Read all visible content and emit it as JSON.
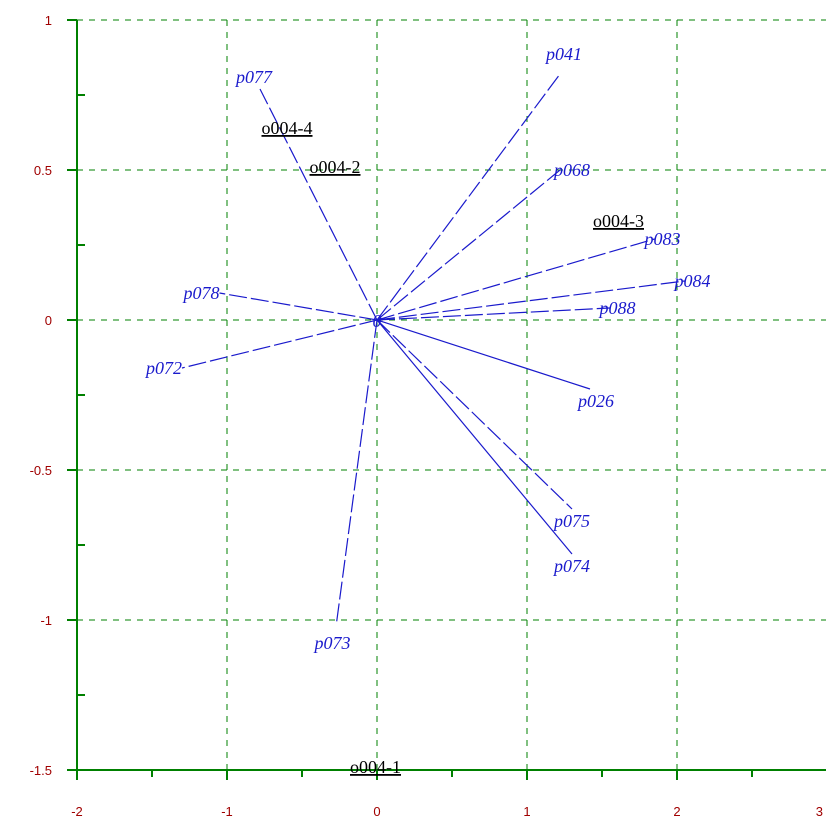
{
  "colors": {
    "axis": "#008000",
    "grid": "#008000",
    "tick_label": "#a00000",
    "vector": "#1a1acc",
    "observation": "#000000"
  },
  "chart_data": {
    "type": "scatter",
    "title": "",
    "xlabel": "",
    "ylabel": "",
    "xlim": [
      -2,
      3
    ],
    "ylim": [
      -1.5,
      1
    ],
    "grid": true,
    "x_ticks": [
      -2,
      -1,
      0,
      1,
      2,
      3
    ],
    "x_tick_labels": [
      "-2",
      "-1",
      "0",
      "1",
      "2",
      "3"
    ],
    "y_ticks": [
      -1.5,
      -1,
      -0.5,
      0,
      0.5,
      1
    ],
    "y_tick_labels": [
      "-1.5",
      "-1",
      "-0.5",
      "0",
      "0.5",
      "1"
    ],
    "origin_marker": "0",
    "vectors": [
      {
        "label": "p041",
        "x": 1.22,
        "y": 0.82,
        "style": "dashed"
      },
      {
        "label": "p077",
        "x": -0.78,
        "y": 0.77,
        "style": "dashed"
      },
      {
        "label": "p068",
        "x": 1.22,
        "y": 0.5,
        "style": "dashed"
      },
      {
        "label": "p083",
        "x": 1.85,
        "y": 0.27,
        "style": "dashed"
      },
      {
        "label": "p084",
        "x": 2.05,
        "y": 0.13,
        "style": "dashed"
      },
      {
        "label": "p088",
        "x": 1.55,
        "y": 0.04,
        "style": "dashed"
      },
      {
        "label": "p078",
        "x": -1.05,
        "y": 0.09,
        "style": "dashed"
      },
      {
        "label": "p072",
        "x": -1.3,
        "y": -0.16,
        "style": "dashed"
      },
      {
        "label": "p026",
        "x": 1.42,
        "y": -0.23,
        "style": "solid"
      },
      {
        "label": "p075",
        "x": 1.3,
        "y": -0.63,
        "style": "dashed"
      },
      {
        "label": "p074",
        "x": 1.3,
        "y": -0.78,
        "style": "solid"
      },
      {
        "label": "p073",
        "x": -0.27,
        "y": -1.01,
        "style": "dashed"
      }
    ],
    "observations": [
      {
        "label": "o004-4",
        "x": -0.77,
        "y": 0.62
      },
      {
        "label": "o004-2",
        "x": -0.45,
        "y": 0.49
      },
      {
        "label": "o004-3",
        "x": 1.44,
        "y": 0.31
      },
      {
        "label": "o004-1",
        "x": -0.18,
        "y": -1.51
      }
    ]
  }
}
